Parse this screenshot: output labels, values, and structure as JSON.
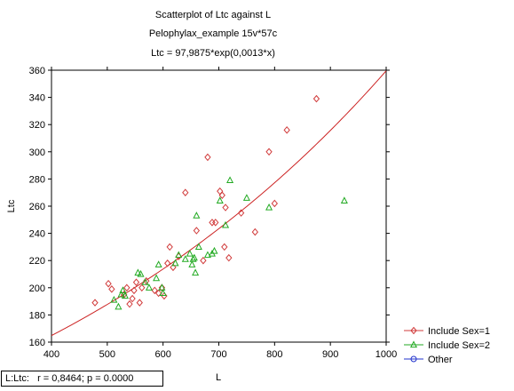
{
  "chart_data": {
    "type": "scatter",
    "title": "Scatterplot of Ltc against L",
    "subtitle": "Pelophylax_example 15v*57c",
    "equation": "Ltc = 97,9875*exp(0,0013*x)",
    "xlabel": "L",
    "ylabel": "Ltc",
    "xlim": [
      400,
      1000
    ],
    "ylim": [
      160,
      360
    ],
    "xticks": [
      "400",
      "500",
      "600",
      "700",
      "800",
      "900",
      "1000"
    ],
    "yticks": [
      "160",
      "180",
      "200",
      "220",
      "240",
      "260",
      "280",
      "300",
      "320",
      "340",
      "360"
    ],
    "grid": false,
    "legend_position": "bottom-right",
    "fit": {
      "type": "exponential",
      "a": 97.9875,
      "b": 0.0013,
      "color": "#cc2222"
    },
    "series": [
      {
        "name": "Include Sex=1",
        "marker": "diamond",
        "color": "#d13b3b",
        "x": [
          478,
          502,
          508,
          530,
          535,
          540,
          545,
          548,
          552,
          558,
          562,
          570,
          585,
          592,
          598,
          602,
          608,
          612,
          618,
          628,
          640,
          660,
          672,
          680,
          688,
          694,
          702,
          706,
          710,
          712,
          718,
          740,
          765,
          790,
          800,
          822,
          875
        ],
        "y": [
          189,
          203,
          199,
          195,
          200,
          188,
          192,
          198,
          204,
          189,
          200,
          205,
          198,
          196,
          200,
          194,
          218,
          230,
          215,
          223,
          270,
          242,
          220,
          296,
          248,
          248,
          271,
          268,
          230,
          259,
          222,
          255,
          241,
          300,
          262,
          316,
          339
        ]
      },
      {
        "name": "Include Sex=2",
        "marker": "triangle",
        "color": "#22aa22",
        "x": [
          512,
          520,
          525,
          528,
          532,
          555,
          560,
          568,
          575,
          588,
          592,
          598,
          600,
          622,
          628,
          640,
          648,
          652,
          654,
          656,
          658,
          660,
          664,
          680,
          688,
          692,
          702,
          712,
          720,
          750,
          790,
          925
        ],
        "y": [
          191,
          186,
          195,
          198,
          194,
          211,
          210,
          204,
          200,
          207,
          217,
          200,
          196,
          218,
          224,
          221,
          225,
          217,
          221,
          222,
          211,
          253,
          230,
          224,
          225,
          227,
          264,
          246,
          279,
          266,
          259,
          264
        ]
      },
      {
        "name": "Other",
        "marker": "circle",
        "color": "#2233cc",
        "x": [],
        "y": []
      }
    ],
    "stats": {
      "label": "L:Ltc:",
      "text": "r = 0,8464; p = 0.0000"
    }
  }
}
